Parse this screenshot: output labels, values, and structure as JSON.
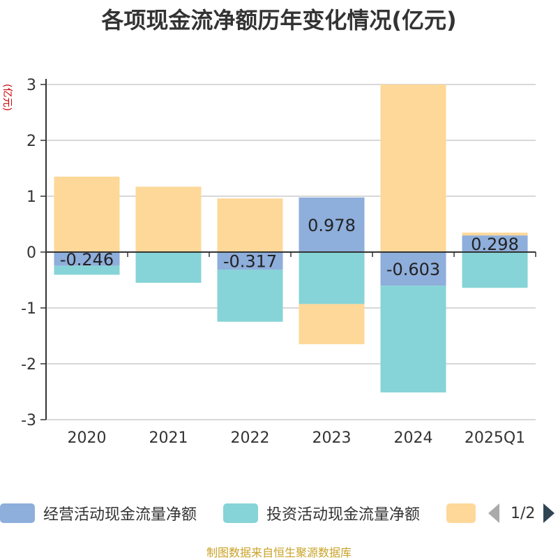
{
  "title": "各项现金流净额历年变化情况(亿元)",
  "unit_label": "(亿元)",
  "source": "制图数据来自恒生聚源数据库",
  "pager": {
    "text": "1/2"
  },
  "colors": {
    "operating": "#8eaedb",
    "investing": "#86d4d7",
    "financing": "#fed899",
    "axis": "#333333",
    "grid": "#cccccc",
    "unit": "#cc0000"
  },
  "legend": [
    {
      "label": "经营活动现金流量净额",
      "color": "#8eaedb"
    },
    {
      "label": "投资活动现金流量净额",
      "color": "#86d4d7"
    },
    {
      "label": "",
      "color": "#fed899"
    }
  ],
  "chart_data": {
    "type": "bar",
    "stacked": true,
    "title": "各项现金流净额历年变化情况(亿元)",
    "ylabel": "(亿元)",
    "ylim": [
      -3,
      3
    ],
    "yticks": [
      3,
      2,
      1,
      0,
      -1,
      -2,
      -3
    ],
    "grid": true,
    "legend_position": "bottom",
    "categories": [
      "2020",
      "2021",
      "2022",
      "2023",
      "2024",
      "2025Q1"
    ],
    "series": [
      {
        "name": "经营活动现金流量净额",
        "values": [
          -0.246,
          0.01,
          -0.317,
          0.978,
          -0.603,
          0.298
        ],
        "labels": [
          "-0.246",
          "",
          "-0.317",
          "0.978",
          "-0.603",
          "0.298"
        ]
      },
      {
        "name": "投资活动现金流量净额",
        "values": [
          -0.16,
          -0.55,
          -0.93,
          -0.93,
          -1.91,
          -0.64
        ]
      },
      {
        "values": [
          1.35,
          1.16,
          0.96,
          -0.72,
          3.0,
          0.05
        ]
      }
    ]
  }
}
